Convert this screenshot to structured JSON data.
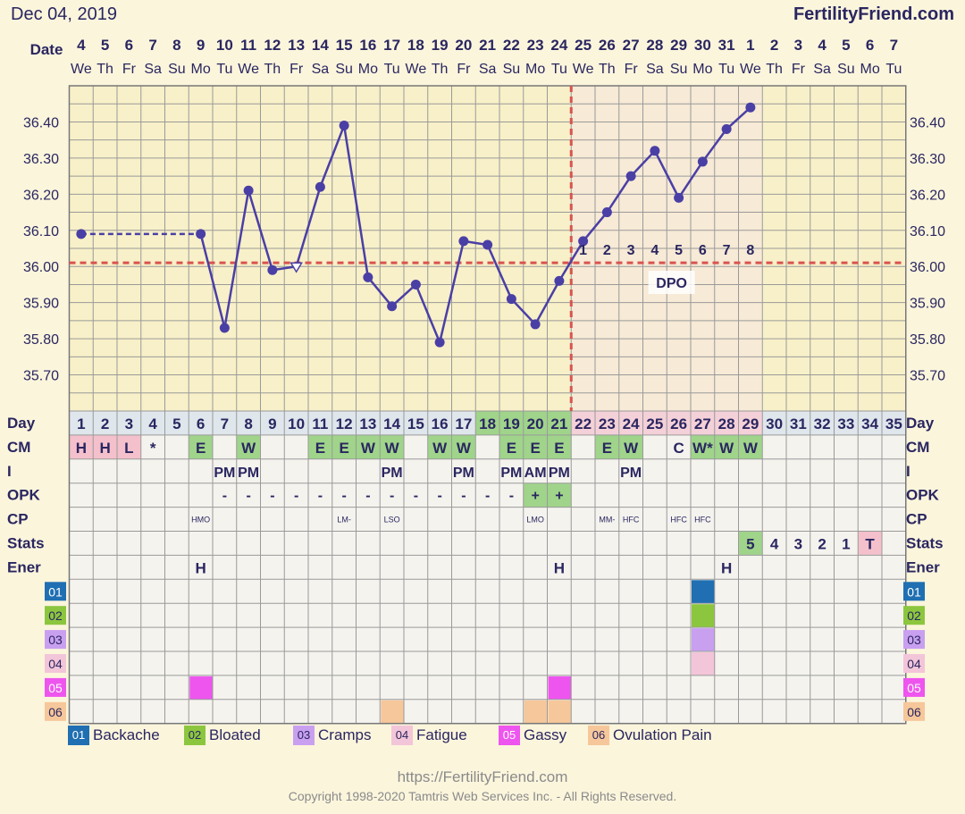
{
  "header": {
    "date": "Dec 04, 2019",
    "site": "FertilityFriend.com"
  },
  "row_labels": {
    "date": "Date",
    "day": "Day",
    "cm": "CM",
    "i": "I",
    "opk": "OPK",
    "cp": "CP",
    "stats": "Stats",
    "ener": "Ener"
  },
  "dates": [
    "4",
    "5",
    "6",
    "7",
    "8",
    "9",
    "10",
    "11",
    "12",
    "13",
    "14",
    "15",
    "16",
    "17",
    "18",
    "19",
    "20",
    "21",
    "22",
    "23",
    "24",
    "25",
    "26",
    "27",
    "28",
    "29",
    "30",
    "31",
    "1",
    "2",
    "3",
    "4",
    "5",
    "6",
    "7"
  ],
  "weekdays": [
    "We",
    "Th",
    "Fr",
    "Sa",
    "Su",
    "Mo",
    "Tu",
    "We",
    "Th",
    "Fr",
    "Sa",
    "Su",
    "Mo",
    "Tu",
    "We",
    "Th",
    "Fr",
    "Sa",
    "Su",
    "Mo",
    "Tu",
    "We",
    "Th",
    "Fr",
    "Sa",
    "Su",
    "Mo",
    "Tu",
    "We",
    "Th",
    "Fr",
    "Sa",
    "Su",
    "Mo",
    "Tu"
  ],
  "days": [
    "1",
    "2",
    "3",
    "4",
    "5",
    "6",
    "7",
    "8",
    "9",
    "10",
    "11",
    "12",
    "13",
    "14",
    "15",
    "16",
    "17",
    "18",
    "19",
    "20",
    "21",
    "22",
    "23",
    "24",
    "25",
    "26",
    "27",
    "28",
    "29",
    "30",
    "31",
    "32",
    "33",
    "34",
    "35"
  ],
  "cm": [
    "H",
    "H",
    "L",
    "*",
    "",
    "E",
    "",
    "W",
    "",
    "",
    "E",
    "E",
    "W",
    "W",
    "",
    "W",
    "W",
    "",
    "E",
    "E",
    "E",
    "",
    "E",
    "W",
    "",
    "C",
    "W*",
    "W",
    "W",
    "",
    "",
    "",
    "",
    "",
    ""
  ],
  "intercourse": [
    "",
    "",
    "",
    "",
    "",
    "",
    "PM",
    "PM",
    "",
    "",
    "",
    "",
    "",
    "PM",
    "",
    "",
    "PM",
    "",
    "PM",
    "AM",
    "PM",
    "",
    "",
    "PM",
    "",
    "",
    "",
    "",
    "",
    "",
    "",
    "",
    "",
    "",
    ""
  ],
  "opk": [
    "",
    "",
    "",
    "",
    "",
    "",
    "-",
    "-",
    "-",
    "-",
    "-",
    "-",
    "-",
    "-",
    "-",
    "-",
    "-",
    "-",
    "-",
    "+",
    "+",
    "",
    "",
    "",
    "",
    "",
    "",
    "",
    "",
    "",
    "",
    "",
    "",
    "",
    ""
  ],
  "cp": [
    "",
    "",
    "",
    "",
    "",
    "HMO",
    "",
    "",
    "",
    "",
    "",
    "LM-",
    "",
    "LSO",
    "",
    "",
    "",
    "",
    "",
    "LMO",
    "",
    "",
    "MM-",
    "HFC",
    "",
    "HFC",
    "HFC",
    "",
    "",
    "",
    "",
    "",
    "",
    "",
    ""
  ],
  "stats": [
    "",
    "",
    "",
    "",
    "",
    "",
    "",
    "",
    "",
    "",
    "",
    "",
    "",
    "",
    "",
    "",
    "",
    "",
    "",
    "",
    "",
    "",
    "",
    "",
    "",
    "",
    "",
    "",
    "5",
    "4",
    "3",
    "2",
    "1",
    "T",
    ""
  ],
  "ener": [
    "",
    "",
    "",
    "",
    "",
    "H",
    "",
    "",
    "",
    "",
    "",
    "",
    "",
    "",
    "",
    "",
    "",
    "",
    "",
    "",
    "H",
    "",
    "",
    "",
    "",
    "",
    "",
    "H",
    "",
    "",
    "",
    "",
    "",
    "",
    ""
  ],
  "symptom_rows": [
    "01",
    "02",
    "03",
    "04",
    "05",
    "06"
  ],
  "symptom_marks": {
    "01": [
      27
    ],
    "02": [
      27
    ],
    "03": [
      27
    ],
    "04": [
      27
    ],
    "05": [
      6,
      21
    ],
    "06": [
      14,
      20,
      21
    ]
  },
  "symptom_colors": {
    "01": "#1f6fb2",
    "02": "#8cc63f",
    "03": "#c9a0f0",
    "04": "#f3c5d8",
    "05": "#ee55ee",
    "06": "#f6c79a"
  },
  "legend": [
    {
      "code": "01",
      "label": "Backache"
    },
    {
      "code": "02",
      "label": "Bloated"
    },
    {
      "code": "03",
      "label": "Cramps"
    },
    {
      "code": "04",
      "label": "Fatigue"
    },
    {
      "code": "05",
      "label": "Gassy"
    },
    {
      "code": "06",
      "label": "Ovulation Pain"
    }
  ],
  "chart_data": {
    "type": "line",
    "ylim": [
      35.6,
      36.5
    ],
    "yticks": [
      "35.70",
      "35.80",
      "35.90",
      "36.00",
      "36.10",
      "36.20",
      "36.30",
      "36.40"
    ],
    "x": [
      1,
      6,
      7,
      8,
      9,
      10,
      11,
      12,
      13,
      14,
      15,
      16,
      17,
      18,
      19,
      20,
      21,
      22,
      23,
      24,
      25,
      26,
      27,
      28,
      29
    ],
    "values": [
      36.09,
      36.09,
      35.83,
      36.21,
      35.99,
      36.0,
      36.22,
      36.39,
      35.97,
      35.89,
      35.95,
      35.79,
      36.07,
      36.06,
      35.91,
      35.84,
      35.96,
      36.07,
      36.15,
      36.25,
      36.32,
      36.19,
      36.29,
      36.38,
      36.44
    ],
    "dashed_segment": [
      1,
      6
    ],
    "open_points": [
      10
    ],
    "coverline": 36.01,
    "ovulation_day": 21,
    "dpo_labels": [
      "1",
      "2",
      "3",
      "4",
      "5",
      "6",
      "7",
      "8"
    ],
    "dpo_text": "DPO",
    "colors": {
      "line": "#4a3fa5",
      "coverline": "#d9534f",
      "plot_bg": "#f8f0c8",
      "grid": "#9a9a9a"
    }
  },
  "footer": {
    "url": "https://FertilityFriend.com",
    "copyright": "Copyright 1998-2020 Tamtris Web Services Inc. - All Rights Reserved."
  }
}
